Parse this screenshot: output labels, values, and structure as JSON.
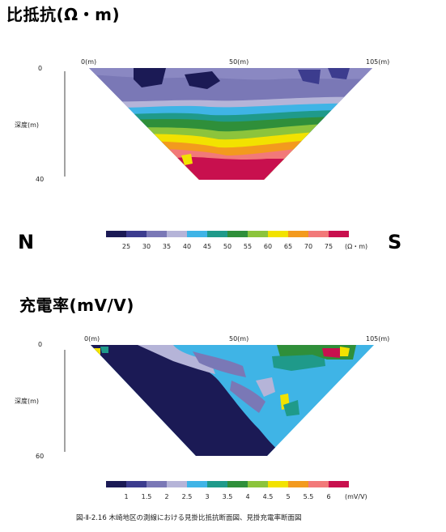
{
  "resistivity": {
    "title": "比抵抗(Ω・m)",
    "distance_labels": [
      "0(m)",
      "50(m)",
      "105(m)"
    ],
    "depth_label": "深度(m)",
    "depth_top": "0",
    "depth_bottom": "40",
    "scale_labels": [
      "25",
      "30",
      "35",
      "40",
      "45",
      "50",
      "55",
      "60",
      "65",
      "70",
      "75"
    ],
    "unit": "(Ω・m)",
    "scale_colors": [
      "#1b1a55",
      "#3c3c8e",
      "#7a78b6",
      "#b5b4d8",
      "#3fb4e6",
      "#1f9a8a",
      "#2f8f3a",
      "#8cc43c",
      "#f2e200",
      "#f39a1e",
      "#f27979",
      "#c8104e"
    ]
  },
  "chargeability": {
    "title": "充電率(mV/V)",
    "distance_labels": [
      "0(m)",
      "50(m)",
      "105(m)"
    ],
    "depth_label": "深度(m)",
    "depth_top": "0",
    "depth_bottom": "60",
    "scale_labels": [
      "1",
      "1.5",
      "2",
      "2.5",
      "3",
      "3.5",
      "4",
      "4.5",
      "5",
      "5.5",
      "6"
    ],
    "unit": "(mV/V)",
    "scale_colors": [
      "#1b1a55",
      "#3c3c8e",
      "#7a78b6",
      "#b5b4d8",
      "#3fb4e6",
      "#1f9a8a",
      "#2f8f3a",
      "#8cc43c",
      "#f2e200",
      "#f39a1e",
      "#f27979",
      "#c8104e"
    ]
  },
  "orientation": {
    "north": "N",
    "south": "S"
  },
  "caption": "図-Ⅱ-2.16  木崎地区の測線における見掛比抵抗断面図、見掛充電率断面図"
}
